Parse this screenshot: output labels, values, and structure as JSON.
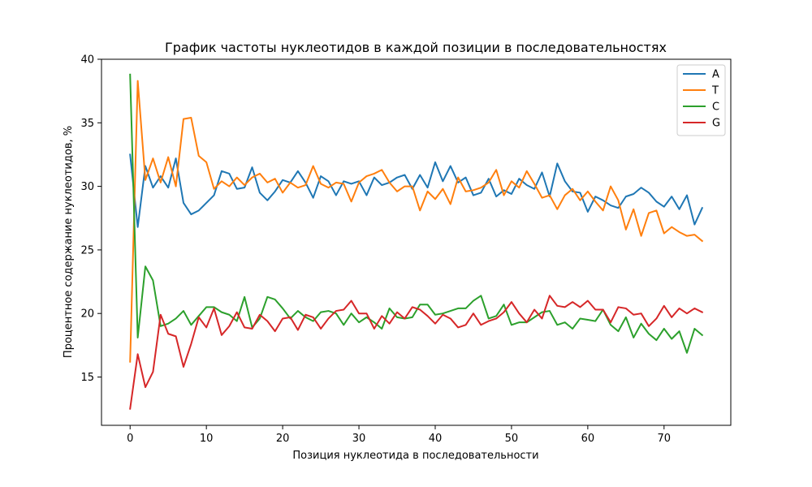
{
  "chart_data": {
    "type": "line",
    "title": "График частоты нуклеотидов в каждой позиции в последовательностях",
    "xlabel": "Позиция нуклеотида в последовательности",
    "ylabel": "Процентное содержание нуклеотидов, %",
    "xlim": [
      -3.75,
      78.75
    ],
    "ylim": [
      11.2,
      40.0
    ],
    "xticks": [
      0,
      10,
      20,
      30,
      40,
      50,
      60,
      70
    ],
    "yticks": [
      15,
      20,
      25,
      30,
      35,
      40
    ],
    "grid": false,
    "legend_position": "top-right",
    "x": [
      0,
      1,
      2,
      3,
      4,
      5,
      6,
      7,
      8,
      9,
      10,
      11,
      12,
      13,
      14,
      15,
      16,
      17,
      18,
      19,
      20,
      21,
      22,
      23,
      24,
      25,
      26,
      27,
      28,
      29,
      30,
      31,
      32,
      33,
      34,
      35,
      36,
      37,
      38,
      39,
      40,
      41,
      42,
      43,
      44,
      45,
      46,
      47,
      48,
      49,
      50,
      51,
      52,
      53,
      54,
      55,
      56,
      57,
      58,
      59,
      60,
      61,
      62,
      63,
      64,
      65,
      66,
      67,
      68,
      69,
      70,
      71,
      72,
      73,
      74,
      75
    ],
    "series": [
      {
        "name": "A",
        "color": "#1f77b4",
        "values": [
          32.5,
          26.8,
          31.6,
          29.9,
          30.8,
          29.9,
          32.2,
          28.7,
          27.8,
          28.1,
          28.7,
          29.3,
          31.2,
          31.0,
          29.8,
          29.9,
          31.5,
          29.5,
          28.9,
          29.6,
          30.5,
          30.3,
          31.2,
          30.3,
          29.1,
          30.8,
          30.4,
          29.3,
          30.4,
          30.2,
          30.4,
          29.3,
          30.7,
          30.1,
          30.3,
          30.7,
          30.9,
          29.8,
          30.9,
          29.9,
          31.9,
          30.4,
          31.6,
          30.3,
          30.7,
          29.3,
          29.5,
          30.6,
          29.2,
          29.7,
          29.4,
          30.6,
          30.1,
          29.8,
          31.1,
          29.2,
          31.8,
          30.4,
          29.6,
          29.5,
          28.0,
          29.2,
          28.9,
          28.5,
          28.3,
          29.2,
          29.4,
          29.9,
          29.5,
          28.8,
          28.4,
          29.2,
          28.2,
          29.3,
          27.0,
          28.3
        ]
      },
      {
        "name": "T",
        "color": "#ff7f0e",
        "values": [
          16.2,
          38.3,
          30.5,
          32.2,
          30.3,
          32.3,
          30.0,
          35.3,
          35.4,
          32.4,
          31.9,
          29.8,
          30.4,
          30.0,
          30.7,
          30.1,
          30.7,
          31.0,
          30.3,
          30.6,
          29.5,
          30.3,
          29.9,
          30.1,
          31.6,
          30.2,
          29.9,
          30.3,
          30.2,
          28.8,
          30.3,
          30.8,
          31.0,
          31.3,
          30.3,
          29.6,
          30.0,
          30.0,
          28.1,
          29.6,
          29.0,
          29.8,
          28.6,
          30.7,
          29.6,
          29.7,
          29.9,
          30.3,
          31.3,
          29.3,
          30.4,
          29.9,
          31.2,
          30.2,
          29.1,
          29.3,
          28.2,
          29.3,
          29.8,
          28.9,
          29.6,
          28.8,
          28.1,
          30.0,
          28.9,
          26.6,
          28.2,
          26.1,
          27.9,
          28.1,
          26.3,
          26.8,
          26.4,
          26.1,
          26.2,
          25.7
        ]
      },
      {
        "name": "C",
        "color": "#2ca02c",
        "values": [
          38.8,
          18.1,
          23.7,
          22.6,
          19.0,
          19.2,
          19.6,
          20.2,
          19.1,
          19.8,
          20.5,
          20.5,
          20.1,
          19.9,
          19.4,
          21.3,
          18.9,
          19.6,
          21.3,
          21.1,
          20.4,
          19.6,
          20.2,
          19.7,
          19.4,
          20.1,
          20.2,
          20.0,
          19.1,
          20.0,
          19.3,
          19.7,
          19.3,
          18.8,
          20.4,
          19.7,
          19.6,
          19.7,
          20.7,
          20.7,
          19.9,
          20.0,
          20.2,
          20.4,
          20.4,
          21.0,
          21.4,
          19.6,
          19.8,
          20.7,
          19.1,
          19.3,
          19.3,
          19.7,
          20.1,
          20.2,
          19.1,
          19.3,
          18.8,
          19.6,
          19.5,
          19.4,
          20.3,
          19.1,
          18.6,
          19.7,
          18.1,
          19.2,
          18.4,
          17.9,
          18.8,
          18.0,
          18.6,
          16.9,
          18.8,
          18.3
        ]
      },
      {
        "name": "G",
        "color": "#d62728",
        "values": [
          12.5,
          16.8,
          14.2,
          15.4,
          19.9,
          18.4,
          18.2,
          15.8,
          17.6,
          19.7,
          18.9,
          20.4,
          18.3,
          19.0,
          20.1,
          18.9,
          18.8,
          19.9,
          19.4,
          18.6,
          19.6,
          19.7,
          18.7,
          19.9,
          19.7,
          18.8,
          19.6,
          20.2,
          20.3,
          21.0,
          20.0,
          20.0,
          18.8,
          19.8,
          19.2,
          20.1,
          19.6,
          20.5,
          20.3,
          19.8,
          19.2,
          19.9,
          19.6,
          18.9,
          19.1,
          20.0,
          19.1,
          19.4,
          19.6,
          20.1,
          20.9,
          20.0,
          19.3,
          20.3,
          19.6,
          21.4,
          20.6,
          20.5,
          20.9,
          20.5,
          21.0,
          20.3,
          20.3,
          19.3,
          20.5,
          20.4,
          19.9,
          20.0,
          19.0,
          19.6,
          20.6,
          19.7,
          20.4,
          20.0,
          20.4,
          20.1
        ]
      }
    ]
  }
}
